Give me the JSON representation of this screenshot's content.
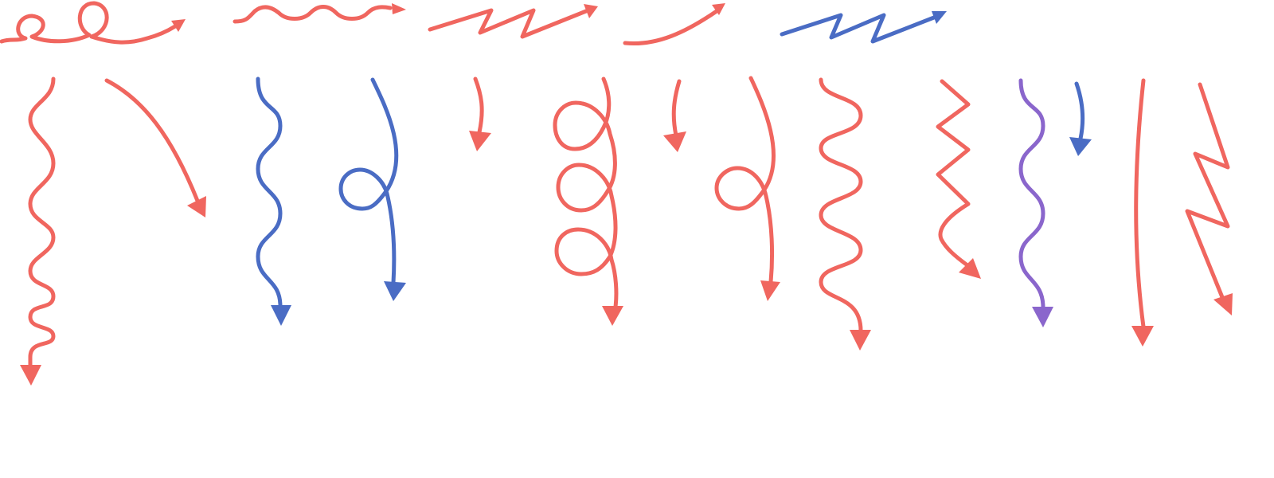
{
  "title": "",
  "colors": {
    "red": "#f0665f",
    "blue": "#4a6cc4",
    "purple": "#8a66cc"
  },
  "arrows": [
    {
      "id": "top-loop-arrow",
      "style": "loop",
      "color": "red"
    },
    {
      "id": "top-wave-arrow",
      "style": "wave",
      "color": "red"
    },
    {
      "id": "top-zigzag-arrow",
      "style": "zigzag",
      "color": "red"
    },
    {
      "id": "top-curve-arrow",
      "style": "curve",
      "color": "red"
    },
    {
      "id": "top-zigzag-arrow-blue",
      "style": "zigzag",
      "color": "blue"
    },
    {
      "id": "wave-arrow-1",
      "style": "wave",
      "color": "red"
    },
    {
      "id": "curve-arrow-1",
      "style": "curve",
      "color": "red"
    },
    {
      "id": "wave-arrow-2",
      "style": "wave",
      "color": "blue"
    },
    {
      "id": "loop-arrow-1",
      "style": "loop",
      "color": "blue"
    },
    {
      "id": "short-curve-arrow-1",
      "style": "curve",
      "color": "red"
    },
    {
      "id": "triple-loop-arrow",
      "style": "loop",
      "color": "red"
    },
    {
      "id": "short-curve-arrow-2",
      "style": "curve",
      "color": "red"
    },
    {
      "id": "loop-arrow-2",
      "style": "loop",
      "color": "red"
    },
    {
      "id": "wave-arrow-3",
      "style": "wave",
      "color": "red"
    },
    {
      "id": "zigzag-arrow-1",
      "style": "zigzag",
      "color": "red"
    },
    {
      "id": "wave-arrow-4",
      "style": "wave",
      "color": "purple"
    },
    {
      "id": "short-curve-arrow-3",
      "style": "curve",
      "color": "blue"
    },
    {
      "id": "straight-arrow",
      "style": "straight",
      "color": "red"
    },
    {
      "id": "zigzag-arrow-2",
      "style": "zigzag",
      "color": "red"
    }
  ]
}
